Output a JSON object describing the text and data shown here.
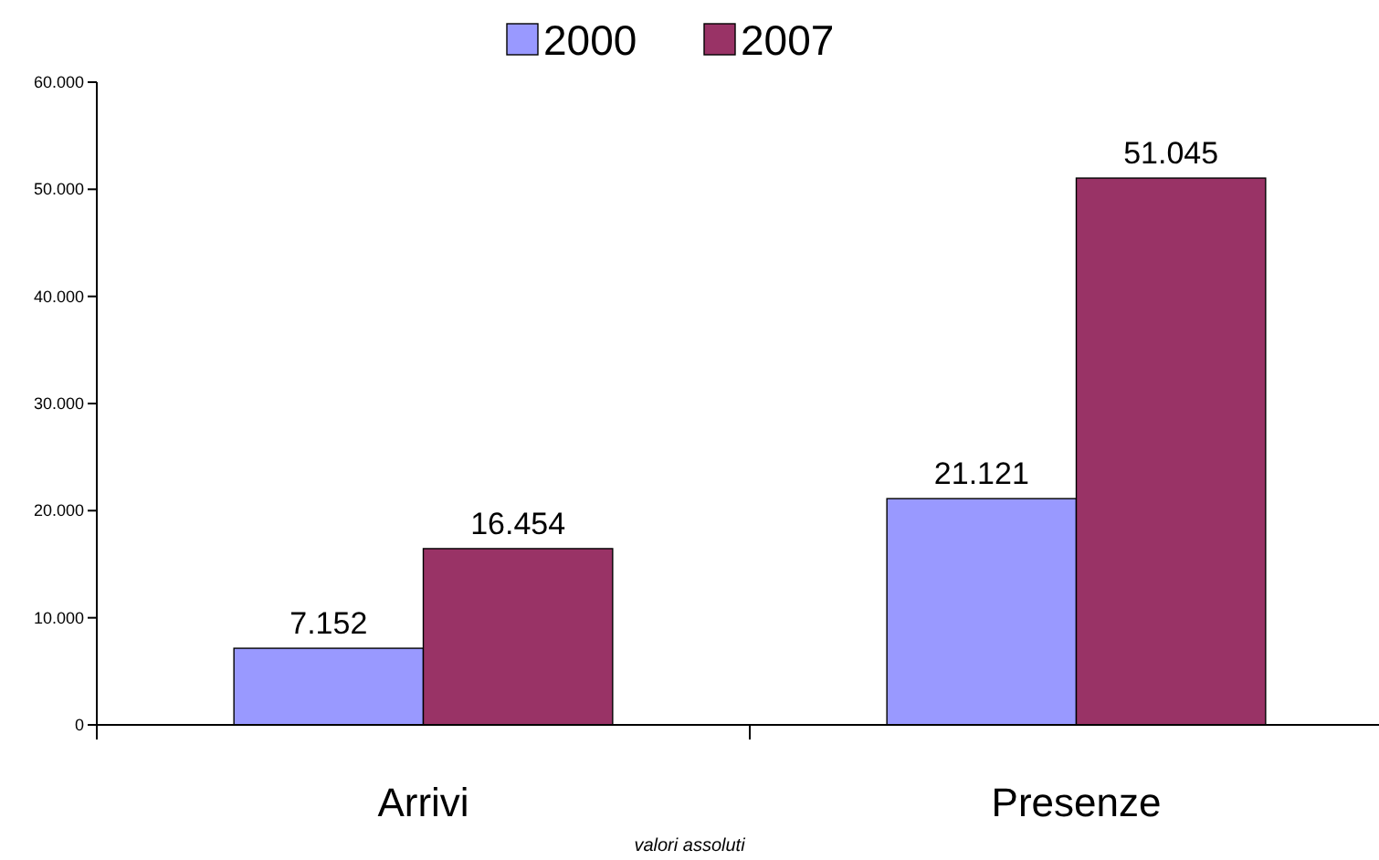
{
  "chart_data": {
    "type": "bar",
    "categories": [
      "Arrivi",
      "Presenze"
    ],
    "series": [
      {
        "name": "2000",
        "color": "#9999ff",
        "values": [
          7152,
          21121
        ],
        "value_labels": [
          "7.152",
          "21.121"
        ]
      },
      {
        "name": "2007",
        "color": "#993366",
        "values": [
          16454,
          51045
        ],
        "value_labels": [
          "16.454",
          "51.045"
        ]
      }
    ],
    "ylim": [
      0,
      60000
    ],
    "yticks": [
      {
        "value": 0,
        "label": "0"
      },
      {
        "value": 10000,
        "label": "10.000"
      },
      {
        "value": 20000,
        "label": "20.000"
      },
      {
        "value": 30000,
        "label": "30.000"
      },
      {
        "value": 40000,
        "label": "40.000"
      },
      {
        "value": 50000,
        "label": "50.000"
      },
      {
        "value": 60000,
        "label": "60.000"
      }
    ],
    "legend": "top",
    "grid": false,
    "annotations": [
      "valori assoluti"
    ]
  }
}
